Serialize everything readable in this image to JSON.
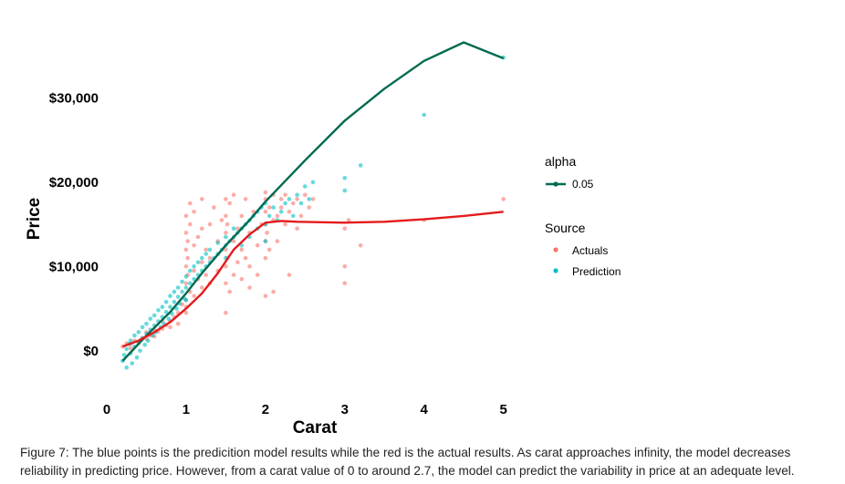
{
  "chart_data": {
    "type": "scatter",
    "xlabel": "Carat",
    "ylabel": "Price",
    "xlim": [
      0,
      5.05
    ],
    "ylim": [
      -5000,
      36000
    ],
    "x_ticks": [
      {
        "value": 0,
        "label": "0"
      },
      {
        "value": 1,
        "label": "1"
      },
      {
        "value": 2,
        "label": "2"
      },
      {
        "value": 3,
        "label": "3"
      },
      {
        "value": 4,
        "label": "4"
      },
      {
        "value": 5,
        "label": "5"
      }
    ],
    "y_ticks": [
      {
        "value": 0,
        "label": "$0"
      },
      {
        "value": 10000,
        "label": "$10,000"
      },
      {
        "value": 20000,
        "label": "$20,000"
      },
      {
        "value": 30000,
        "label": "$30,000"
      }
    ],
    "grid": false,
    "legend_position": "right",
    "legends": [
      {
        "title": "alpha",
        "entries": [
          {
            "label": "0.05",
            "color": "#006a50",
            "shape": "line-point"
          }
        ]
      },
      {
        "title": "Source",
        "entries": [
          {
            "label": "Actuals",
            "color": "#f8766d",
            "shape": "point"
          },
          {
            "label": "Prediction",
            "color": "#00bfc4",
            "shape": "point"
          }
        ]
      }
    ],
    "series": [
      {
        "name": "Actuals",
        "kind": "scatter",
        "color": "#f8766d",
        "points": [
          [
            0.2,
            500
          ],
          [
            0.25,
            900
          ],
          [
            0.3,
            300
          ],
          [
            0.3,
            800
          ],
          [
            0.35,
            1200
          ],
          [
            0.4,
            900
          ],
          [
            0.45,
            1500
          ],
          [
            0.5,
            1400
          ],
          [
            0.5,
            2200
          ],
          [
            0.55,
            1800
          ],
          [
            0.6,
            2500
          ],
          [
            0.6,
            1700
          ],
          [
            0.65,
            2300
          ],
          [
            0.7,
            2600
          ],
          [
            0.7,
            3500
          ],
          [
            0.75,
            3000
          ],
          [
            0.8,
            3500
          ],
          [
            0.8,
            2800
          ],
          [
            0.85,
            4000
          ],
          [
            0.9,
            4500
          ],
          [
            0.9,
            3200
          ],
          [
            0.95,
            5500
          ],
          [
            1.0,
            4500
          ],
          [
            1.0,
            6000
          ],
          [
            1.0,
            8000
          ],
          [
            1.0,
            10000
          ],
          [
            1.0,
            12000
          ],
          [
            1.0,
            14000
          ],
          [
            1.0,
            16000
          ],
          [
            1.0,
            5200
          ],
          [
            1.02,
            9000
          ],
          [
            1.02,
            11000
          ],
          [
            1.02,
            13000
          ],
          [
            1.05,
            7000
          ],
          [
            1.05,
            15000
          ],
          [
            1.05,
            17500
          ],
          [
            1.1,
            6500
          ],
          [
            1.1,
            9500
          ],
          [
            1.1,
            12500
          ],
          [
            1.1,
            16500
          ],
          [
            1.15,
            8500
          ],
          [
            1.15,
            13500
          ],
          [
            1.2,
            7500
          ],
          [
            1.2,
            10500
          ],
          [
            1.2,
            14500
          ],
          [
            1.2,
            18000
          ],
          [
            1.25,
            9000
          ],
          [
            1.25,
            12000
          ],
          [
            1.3,
            11000
          ],
          [
            1.3,
            15000
          ],
          [
            1.3,
            8000
          ],
          [
            1.35,
            17000
          ],
          [
            1.4,
            9500
          ],
          [
            1.4,
            13000
          ],
          [
            1.45,
            15500
          ],
          [
            1.5,
            8000
          ],
          [
            1.5,
            10000
          ],
          [
            1.5,
            12000
          ],
          [
            1.5,
            14000
          ],
          [
            1.5,
            16000
          ],
          [
            1.5,
            18000
          ],
          [
            1.5,
            4500
          ],
          [
            1.52,
            11000
          ],
          [
            1.52,
            15000
          ],
          [
            1.55,
            7000
          ],
          [
            1.55,
            17500
          ],
          [
            1.6,
            9000
          ],
          [
            1.6,
            13000
          ],
          [
            1.6,
            18500
          ],
          [
            1.65,
            10500
          ],
          [
            1.65,
            14500
          ],
          [
            1.7,
            8500
          ],
          [
            1.7,
            12000
          ],
          [
            1.7,
            16000
          ],
          [
            1.75,
            11000
          ],
          [
            1.75,
            18000
          ],
          [
            1.8,
            10000
          ],
          [
            1.8,
            14000
          ],
          [
            1.8,
            7500
          ],
          [
            1.85,
            16500
          ],
          [
            1.9,
            12500
          ],
          [
            1.9,
            9000
          ],
          [
            1.95,
            15000
          ],
          [
            2.0,
            11000
          ],
          [
            2.0,
            13000
          ],
          [
            2.0,
            15000
          ],
          [
            2.0,
            16500
          ],
          [
            2.0,
            18000
          ],
          [
            2.0,
            18800
          ],
          [
            2.0,
            6500
          ],
          [
            2.02,
            14000
          ],
          [
            2.05,
            17000
          ],
          [
            2.05,
            12000
          ],
          [
            2.1,
            18500
          ],
          [
            2.1,
            15500
          ],
          [
            2.1,
            7000
          ],
          [
            2.15,
            16000
          ],
          [
            2.15,
            13000
          ],
          [
            2.2,
            18000
          ],
          [
            2.2,
            17000
          ],
          [
            2.25,
            15000
          ],
          [
            2.25,
            18500
          ],
          [
            2.3,
            16500
          ],
          [
            2.3,
            9000
          ],
          [
            2.35,
            17500
          ],
          [
            2.4,
            14500
          ],
          [
            2.4,
            18000
          ],
          [
            2.45,
            16000
          ],
          [
            2.5,
            18500
          ],
          [
            2.55,
            17000
          ],
          [
            2.6,
            18000
          ],
          [
            3.0,
            8000
          ],
          [
            3.0,
            10000
          ],
          [
            3.0,
            14500
          ],
          [
            3.05,
            15500
          ],
          [
            3.2,
            12500
          ],
          [
            4.0,
            15500
          ],
          [
            5.0,
            18000
          ]
        ]
      },
      {
        "name": "Prediction",
        "kind": "scatter",
        "color": "#00bfc4",
        "points": [
          [
            0.2,
            -1200
          ],
          [
            0.22,
            -500
          ],
          [
            0.25,
            200
          ],
          [
            0.25,
            -2000
          ],
          [
            0.28,
            800
          ],
          [
            0.3,
            -300
          ],
          [
            0.3,
            1200
          ],
          [
            0.32,
            -1500
          ],
          [
            0.35,
            500
          ],
          [
            0.35,
            1800
          ],
          [
            0.38,
            -800
          ],
          [
            0.4,
            1000
          ],
          [
            0.4,
            2200
          ],
          [
            0.42,
            0
          ],
          [
            0.45,
            1500
          ],
          [
            0.45,
            2800
          ],
          [
            0.48,
            700
          ],
          [
            0.5,
            2000
          ],
          [
            0.5,
            3200
          ],
          [
            0.52,
            1200
          ],
          [
            0.55,
            2500
          ],
          [
            0.55,
            3800
          ],
          [
            0.58,
            1800
          ],
          [
            0.6,
            3000
          ],
          [
            0.6,
            4200
          ],
          [
            0.62,
            2200
          ],
          [
            0.65,
            3500
          ],
          [
            0.65,
            4800
          ],
          [
            0.68,
            2800
          ],
          [
            0.7,
            4000
          ],
          [
            0.7,
            5200
          ],
          [
            0.72,
            3200
          ],
          [
            0.75,
            4600
          ],
          [
            0.75,
            5800
          ],
          [
            0.78,
            3800
          ],
          [
            0.8,
            5200
          ],
          [
            0.8,
            6500
          ],
          [
            0.82,
            4400
          ],
          [
            0.85,
            5800
          ],
          [
            0.85,
            7000
          ],
          [
            0.88,
            5000
          ],
          [
            0.9,
            6400
          ],
          [
            0.9,
            7500
          ],
          [
            0.92,
            5600
          ],
          [
            0.95,
            7000
          ],
          [
            0.95,
            8200
          ],
          [
            0.98,
            6200
          ],
          [
            1.0,
            7500
          ],
          [
            1.0,
            8800
          ],
          [
            1.0,
            6000
          ],
          [
            1.05,
            8000
          ],
          [
            1.05,
            9500
          ],
          [
            1.1,
            8500
          ],
          [
            1.1,
            10000
          ],
          [
            1.15,
            9000
          ],
          [
            1.15,
            10500
          ],
          [
            1.2,
            9500
          ],
          [
            1.2,
            11000
          ],
          [
            1.25,
            10000
          ],
          [
            1.25,
            11500
          ],
          [
            1.3,
            10500
          ],
          [
            1.3,
            12000
          ],
          [
            1.35,
            11000
          ],
          [
            1.4,
            11500
          ],
          [
            1.4,
            12800
          ],
          [
            1.45,
            12000
          ],
          [
            1.5,
            12500
          ],
          [
            1.5,
            13500
          ],
          [
            1.5,
            11000
          ],
          [
            1.55,
            13000
          ],
          [
            1.6,
            13500
          ],
          [
            1.6,
            14500
          ],
          [
            1.65,
            14000
          ],
          [
            1.7,
            14500
          ],
          [
            1.7,
            12500
          ],
          [
            1.75,
            15000
          ],
          [
            1.8,
            15500
          ],
          [
            1.8,
            13500
          ],
          [
            1.85,
            16000
          ],
          [
            1.9,
            16500
          ],
          [
            1.9,
            14500
          ],
          [
            1.95,
            17000
          ],
          [
            2.0,
            17500
          ],
          [
            2.0,
            15000
          ],
          [
            2.0,
            13000
          ],
          [
            2.05,
            16000
          ],
          [
            2.1,
            17000
          ],
          [
            2.15,
            15500
          ],
          [
            2.2,
            16500
          ],
          [
            2.25,
            17500
          ],
          [
            2.3,
            18000
          ],
          [
            2.35,
            16000
          ],
          [
            2.4,
            18500
          ],
          [
            2.45,
            17500
          ],
          [
            2.5,
            19500
          ],
          [
            2.55,
            18000
          ],
          [
            2.6,
            20000
          ],
          [
            3.0,
            20500
          ],
          [
            3.0,
            19000
          ],
          [
            3.2,
            22000
          ],
          [
            4.0,
            28000
          ],
          [
            5.0,
            34800
          ]
        ]
      },
      {
        "name": "Prediction trend",
        "kind": "line",
        "color": "#006a50",
        "x": [
          0.2,
          0.5,
          0.8,
          1.0,
          1.2,
          1.5,
          1.8,
          2.0,
          2.5,
          3.0,
          3.5,
          4.0,
          4.5,
          5.0
        ],
        "y": [
          -1200,
          1800,
          4600,
          6800,
          9200,
          12500,
          15500,
          17700,
          22600,
          27300,
          31100,
          34400,
          36600,
          34700
        ]
      },
      {
        "name": "Actuals trend",
        "kind": "line",
        "color": "#e41a1c",
        "x": [
          0.2,
          0.4,
          0.6,
          0.8,
          1.0,
          1.2,
          1.4,
          1.6,
          1.8,
          2.0,
          2.2,
          2.4,
          3.0,
          3.5,
          4.0,
          4.5,
          5.0
        ],
        "y": [
          500,
          1200,
          2200,
          3400,
          5000,
          6800,
          9200,
          12000,
          13800,
          15200,
          15400,
          15300,
          15200,
          15300,
          15600,
          16000,
          16500
        ]
      }
    ]
  },
  "caption": {
    "text": "Figure 7: The blue points is the predicition model results while the red is the actual results. As carat approaches infinity, the model decreases reliability in predicting price. However, from a carat value of 0 to around 2.7, the model can predict the variability in price at an adequate level."
  }
}
